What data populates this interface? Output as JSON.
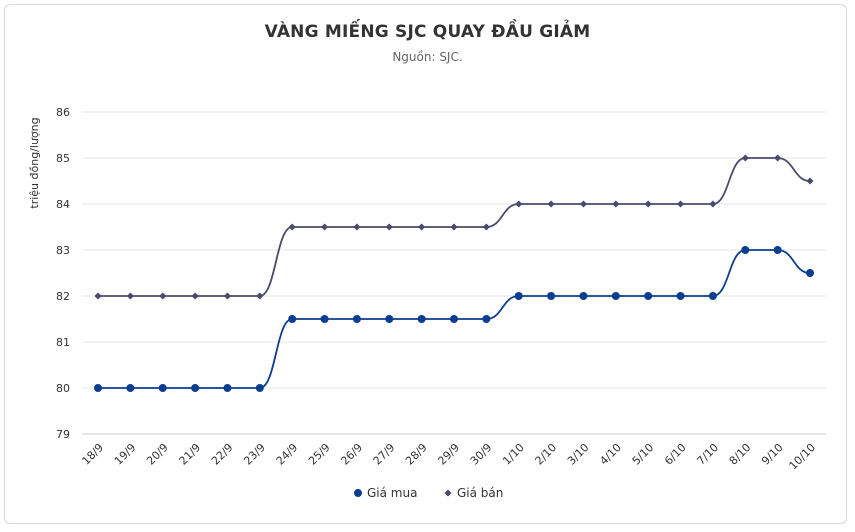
{
  "chart_data": {
    "type": "line",
    "title": "VÀNG MIẾNG SJC QUAY ĐẦU GIẢM",
    "subtitle": "Nguồn: SJC.",
    "ylabel": "triệu đồng/lượng",
    "xlabel": "",
    "ylim": [
      79,
      86
    ],
    "yticks": [
      79,
      80,
      81,
      82,
      83,
      84,
      85,
      86
    ],
    "grid": true,
    "legend": "bottom",
    "categories": [
      "18/9",
      "19/9",
      "20/9",
      "21/9",
      "22/9",
      "23/9",
      "24/9",
      "25/9",
      "26/9",
      "27/9",
      "28/9",
      "29/9",
      "30/9",
      "1/10",
      "2/10",
      "3/10",
      "4/10",
      "5/10",
      "6/10",
      "7/10",
      "8/10",
      "9/10",
      "10/10"
    ],
    "series": [
      {
        "name": "Giá mua",
        "color": "#0b3d91",
        "marker": "circle",
        "values": [
          80,
          80,
          80,
          80,
          80,
          80,
          81.5,
          81.5,
          81.5,
          81.5,
          81.5,
          81.5,
          81.5,
          82,
          82,
          82,
          82,
          82,
          82,
          82,
          83,
          83,
          82.5
        ]
      },
      {
        "name": "Giá bán",
        "color": "#4a4a6a",
        "marker": "diamond",
        "values": [
          82,
          82,
          82,
          82,
          82,
          82,
          83.5,
          83.5,
          83.5,
          83.5,
          83.5,
          83.5,
          83.5,
          84,
          84,
          84,
          84,
          84,
          84,
          84,
          85,
          85,
          84.5
        ]
      }
    ]
  }
}
